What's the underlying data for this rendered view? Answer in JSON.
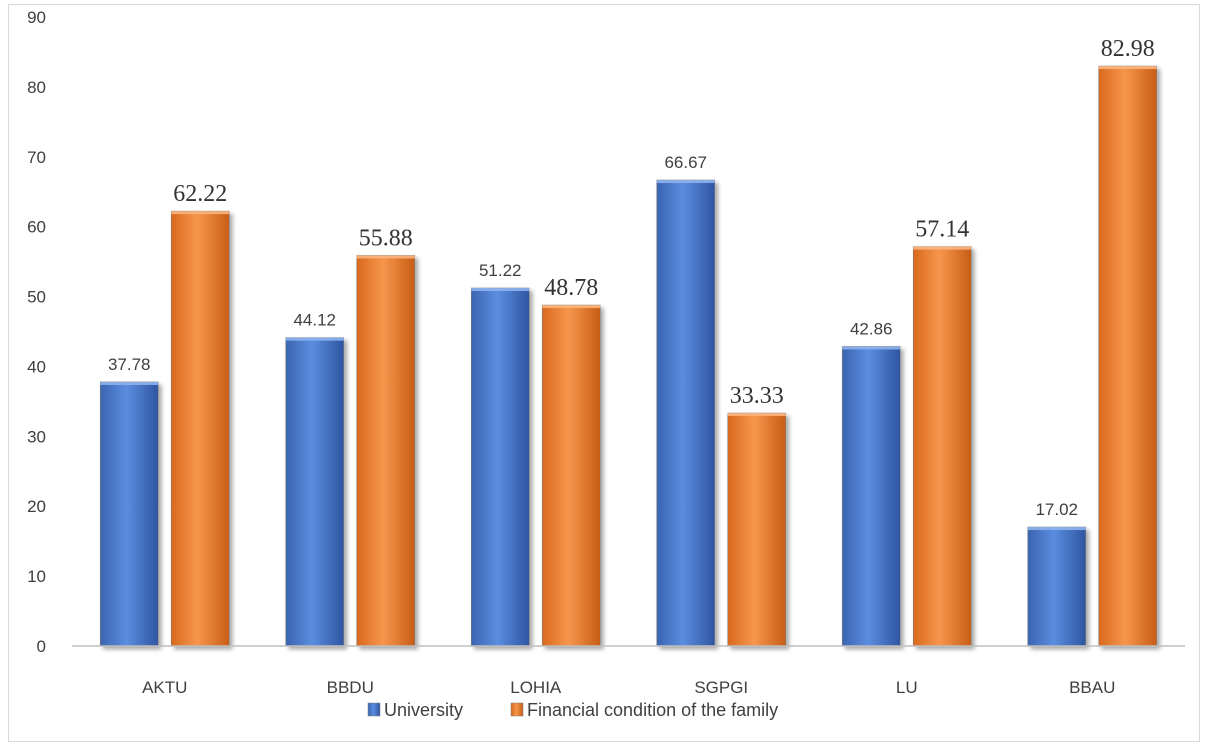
{
  "chart_data": {
    "type": "bar",
    "title": "",
    "xlabel": "",
    "ylabel": "",
    "ylim": [
      0,
      90
    ],
    "yticks": [
      0,
      10,
      20,
      30,
      40,
      50,
      60,
      70,
      80,
      90
    ],
    "grid": false,
    "legend_position": "bottom",
    "categories": [
      "AKTU",
      "BBDU",
      "LOHIA",
      "SGPGI",
      "LU",
      "BBAU"
    ],
    "series": [
      {
        "name": "University",
        "color": "#4472c4",
        "values": [
          37.78,
          44.12,
          51.22,
          66.67,
          42.86,
          17.02
        ],
        "labels": [
          "37.78",
          "44.12",
          "51.22",
          "66.67",
          "42.86",
          "17.02"
        ]
      },
      {
        "name": "Financial condition of the family",
        "color": "#ed7d31",
        "values": [
          62.22,
          55.88,
          48.78,
          33.33,
          57.14,
          82.98
        ],
        "labels": [
          "62.22",
          "55.88",
          "48.78",
          "33.33",
          "57.14",
          "82.98"
        ]
      }
    ]
  }
}
